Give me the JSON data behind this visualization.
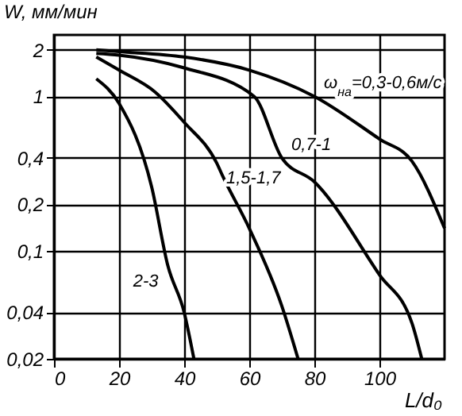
{
  "chart_data": {
    "type": "line",
    "xlabel": "L/d₀",
    "ylabel": "W, мм/мин",
    "log": "y",
    "grid": true,
    "marker": "none",
    "line_style": "solid",
    "xlim": [
      0,
      120
    ],
    "xticks": [
      0,
      20,
      40,
      60,
      80,
      100
    ],
    "ylim": [
      0.02,
      2.5
    ],
    "yticks": [
      {
        "value": 0.02,
        "label": "0,02"
      },
      {
        "value": 0.04,
        "label": "0,04"
      },
      {
        "value": 0.1,
        "label": "0,1"
      },
      {
        "value": 0.2,
        "label": "0,2"
      },
      {
        "value": 0.4,
        "label": "0,4"
      },
      1,
      2
    ],
    "series": [
      {
        "name": "ω$_{на}$=0,3-0,6м/с",
        "color": "#000000",
        "x": [
          13,
          20,
          40,
          60,
          80,
          100,
          110,
          120
        ],
        "values": [
          2,
          1.95,
          1.8,
          1.48,
          1.0,
          0.53,
          0.38,
          0.14
        ]
      },
      {
        "name": "0,7-1",
        "color": "#000000",
        "x": [
          13,
          20,
          40,
          61.5,
          70,
          80,
          100,
          110,
          113
        ],
        "values": [
          1.9,
          1.85,
          1.53,
          1.0,
          0.4,
          0.28,
          0.07,
          0.034,
          0.02
        ]
      },
      {
        "name": "1,5-1,7",
        "color": "#000000",
        "x": [
          13,
          20,
          31,
          40,
          50,
          52,
          60,
          70,
          75
        ],
        "values": [
          1.8,
          1.48,
          1.07,
          0.68,
          0.37,
          0.3,
          0.14,
          0.044,
          0.02
        ]
      },
      {
        "name": "2-3",
        "color": "#000000",
        "x": [
          13,
          20,
          30,
          35,
          40,
          43
        ],
        "values": [
          1.3,
          0.9,
          0.26,
          0.08,
          0.04,
          0.02
        ]
      }
    ]
  }
}
